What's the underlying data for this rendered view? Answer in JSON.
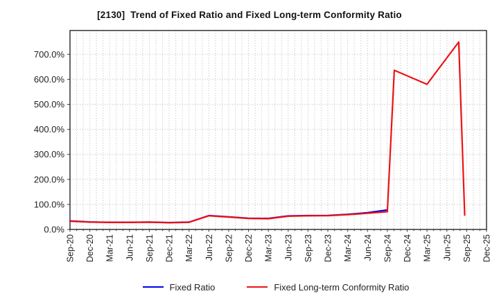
{
  "title": "[2130]  Trend of Fixed Ratio and Fixed Long-term Conformity Ratio",
  "chart_data": {
    "type": "line",
    "title": "[2130]  Trend of Fixed Ratio and Fixed Long-term Conformity Ratio",
    "categories": [
      "Sep-20",
      "Dec-20",
      "Mar-21",
      "Jun-21",
      "Sep-21",
      "Dec-21",
      "Mar-22",
      "Jun-22",
      "Sep-22",
      "Dec-22",
      "Mar-23",
      "Jun-23",
      "Sep-23",
      "Dec-23",
      "Mar-24",
      "Jun-24",
      "Sep-24",
      "Dec-24",
      "Mar-25",
      "Jun-25",
      "Sep-25",
      "Dec-25"
    ],
    "x_unit": "quarter index from Sep-20 (fractional = intra-quarter position)",
    "yticks": [
      0,
      100,
      200,
      300,
      400,
      500,
      600,
      700
    ],
    "ytick_labels": [
      "0.0%",
      "100.0%",
      "200.0%",
      "300.0%",
      "400.0%",
      "500.0%",
      "600.0%",
      "700.0%"
    ],
    "ylim": [
      0,
      795
    ],
    "grid": {
      "horizontal": "every 100%",
      "vertical": "monthly minor dotted",
      "style": "dotted"
    },
    "legend_position": "bottom-center",
    "series": [
      {
        "name": "Fixed Ratio",
        "color": "#0000ee",
        "points": [
          [
            0,
            34
          ],
          [
            1,
            30
          ],
          [
            2,
            28.5
          ],
          [
            3,
            28.5
          ],
          [
            4,
            29.5
          ],
          [
            5,
            27.5
          ],
          [
            6,
            29
          ],
          [
            7,
            55.5
          ],
          [
            8,
            50.5
          ],
          [
            9,
            45
          ],
          [
            10,
            44
          ],
          [
            11,
            54
          ],
          [
            12,
            55.5
          ],
          [
            13,
            56
          ],
          [
            14,
            60.5
          ],
          [
            15,
            67
          ],
          [
            16,
            78
          ]
        ]
      },
      {
        "name": "Fixed Long-term Conformity Ratio",
        "color": "#ee1111",
        "points": [
          [
            0,
            33
          ],
          [
            1,
            29.5
          ],
          [
            2,
            28
          ],
          [
            3,
            28
          ],
          [
            4,
            29
          ],
          [
            5,
            27
          ],
          [
            6,
            28.5
          ],
          [
            7,
            54.5
          ],
          [
            8,
            49.5
          ],
          [
            9,
            44
          ],
          [
            10,
            43
          ],
          [
            11,
            53
          ],
          [
            12,
            54.5
          ],
          [
            13,
            55
          ],
          [
            14,
            59
          ],
          [
            15,
            64.5
          ],
          [
            16,
            71
          ],
          [
            16.35,
            636
          ],
          [
            18,
            580
          ],
          [
            19.6,
            749
          ],
          [
            19.9,
            57
          ]
        ]
      }
    ]
  }
}
